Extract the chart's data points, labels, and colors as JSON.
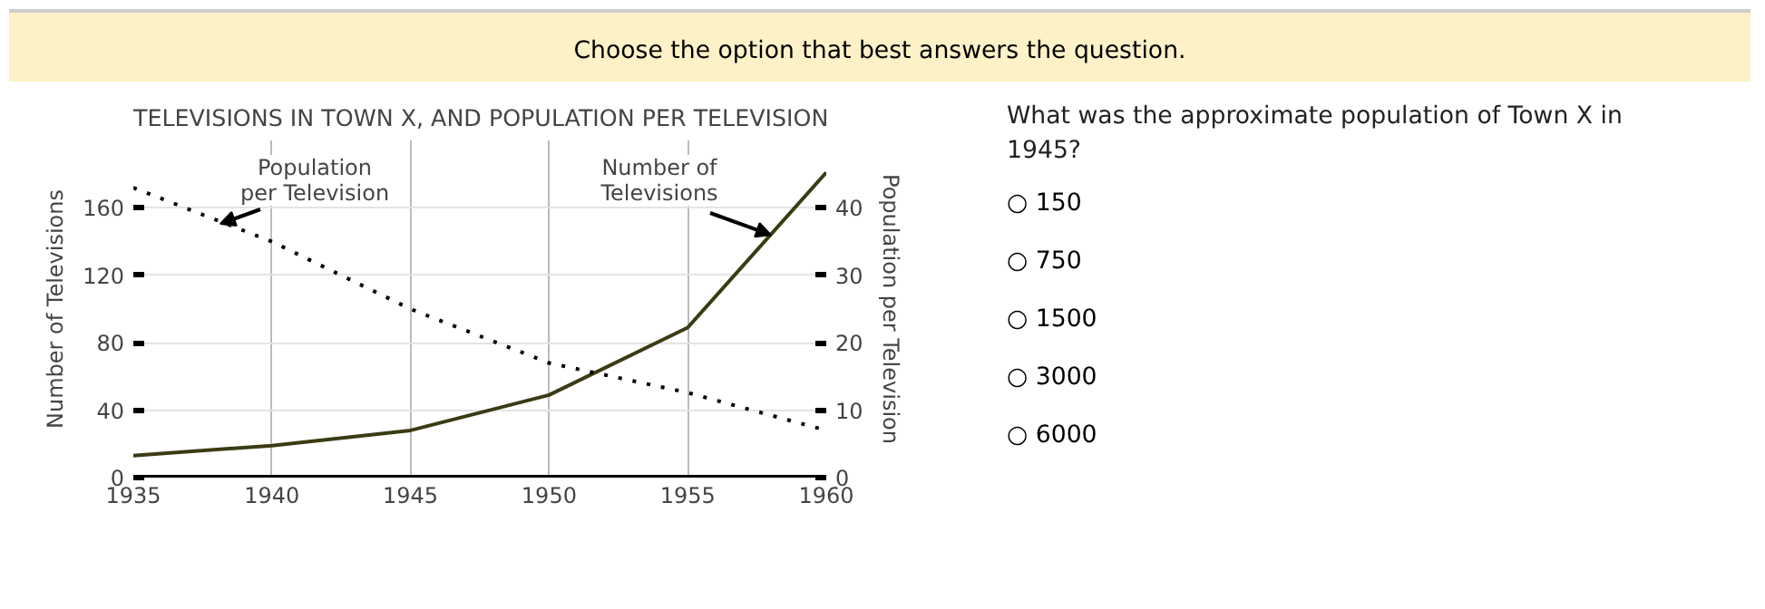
{
  "chart_data": {
    "type": "line",
    "title": "TELEVISIONS IN TOWN X, AND POPULATION PER TELEVISION",
    "ylabel": "Number of Televisions",
    "y2label": "Population per Television",
    "x": [
      1935,
      1940,
      1945,
      1950,
      1955,
      1960
    ],
    "series": [
      {
        "color": "#3b3b14",
        "values": [
          13,
          19,
          28,
          49,
          89,
          181
        ],
        "line_style": "solid"
      },
      {
        "color": "#000000",
        "values": [
          43,
          35,
          25,
          17,
          12.6,
          7
        ],
        "axis": "y2",
        "line_style": "dotted"
      }
    ],
    "xlim": [
      1935,
      1960
    ],
    "xticks": [
      1935,
      1940,
      1945,
      1950,
      1955,
      1960
    ],
    "ylim": [
      0,
      200
    ],
    "yticks": [
      0,
      40,
      80,
      120,
      160
    ],
    "y2lim": [
      0,
      50
    ],
    "y2ticks": [
      0,
      10,
      20,
      30,
      40
    ],
    "grid": true,
    "marker": "none",
    "annotations": [
      "Population\nper Television",
      {
        "text": "Number of\nTelevisions",
        "x": 1958,
        "y": 144
      },
      "Choose the option that best answers the question.",
      "What was the approximate population of Town X in 1945?",
      "○ 150",
      "○ 750",
      "○ 1500",
      "○ 3000",
      "○ 6000"
    ]
  }
}
